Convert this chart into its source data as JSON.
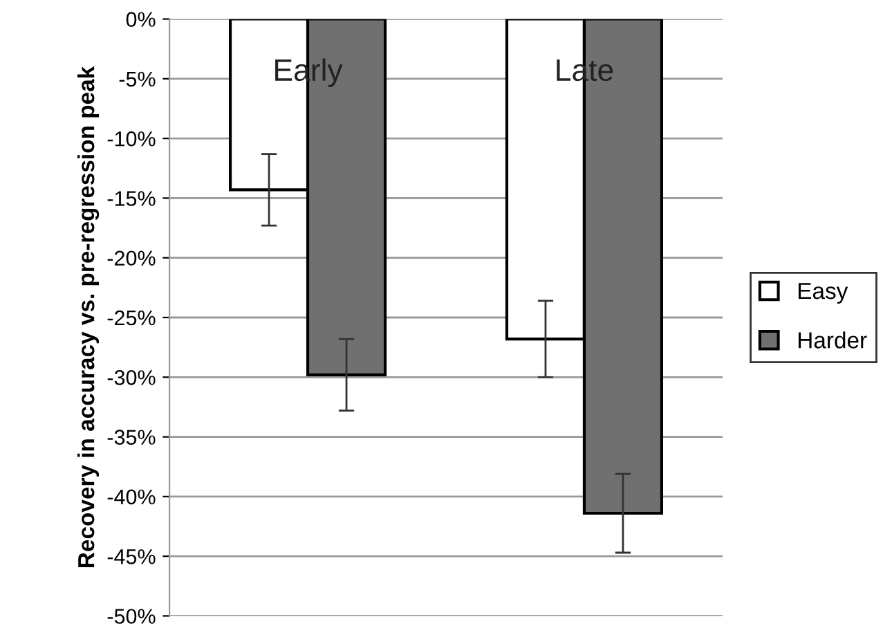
{
  "chart_data": {
    "type": "bar",
    "ylabel": "Recovery in accuracy vs. pre-regression peak",
    "categories": [
      "Early",
      "Late"
    ],
    "series": [
      {
        "name": "Easy",
        "color": "#ffffff",
        "values": [
          -14.3,
          -26.8
        ],
        "errors": [
          3,
          3.2
        ]
      },
      {
        "name": "Harder",
        "color": "#707070",
        "values": [
          -29.8,
          -41.4
        ],
        "errors": [
          3,
          3.3
        ]
      }
    ],
    "ylim": [
      -50,
      0
    ],
    "yticks": [
      {
        "value": 0,
        "label": "0%"
      },
      {
        "value": -5,
        "label": "-5%"
      },
      {
        "value": -10,
        "label": "-10%"
      },
      {
        "value": -15,
        "label": "-15%"
      },
      {
        "value": -20,
        "label": "-20%"
      },
      {
        "value": -25,
        "label": "-25%"
      },
      {
        "value": -30,
        "label": "-30%"
      },
      {
        "value": -35,
        "label": "-35%"
      },
      {
        "value": -40,
        "label": "-40%"
      },
      {
        "value": -45,
        "label": "-45%"
      },
      {
        "value": -50,
        "label": "-50%"
      }
    ],
    "grid": "y",
    "legend": "right"
  }
}
